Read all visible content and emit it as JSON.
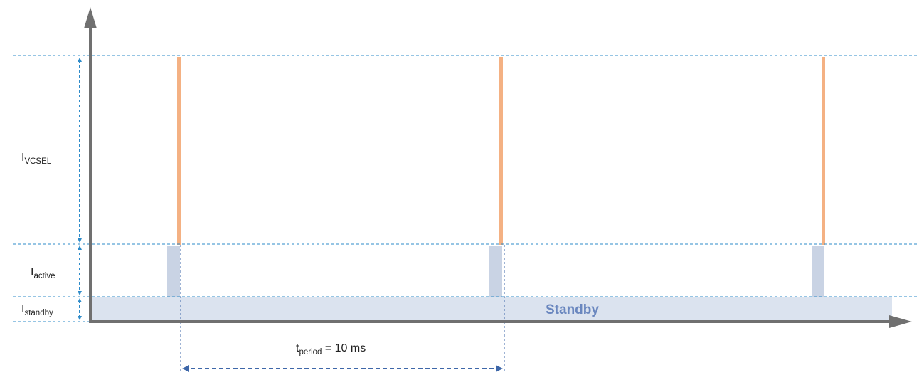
{
  "labels": {
    "i_vcsel": {
      "main": "I",
      "sub": "VCSEL"
    },
    "i_active": {
      "main": "I",
      "sub": "active"
    },
    "i_standby": {
      "main": "I",
      "sub": "standby"
    },
    "t_period": {
      "main": "t",
      "sub": "period",
      "rest": " = 10 ms"
    },
    "standby_band": "Standby"
  },
  "colors": {
    "axis": "#707070",
    "guide": "#2e8bc9",
    "vcsel_pulse": "#f4b183",
    "active_block": "#c9d3e4",
    "standby_band": "#dbe3ef",
    "standby_text": "#6a87bf",
    "period_arrow": "#3e67a9"
  },
  "pulses": [
    {
      "name": "pulse-1"
    },
    {
      "name": "pulse-2"
    },
    {
      "name": "pulse-3"
    }
  ]
}
